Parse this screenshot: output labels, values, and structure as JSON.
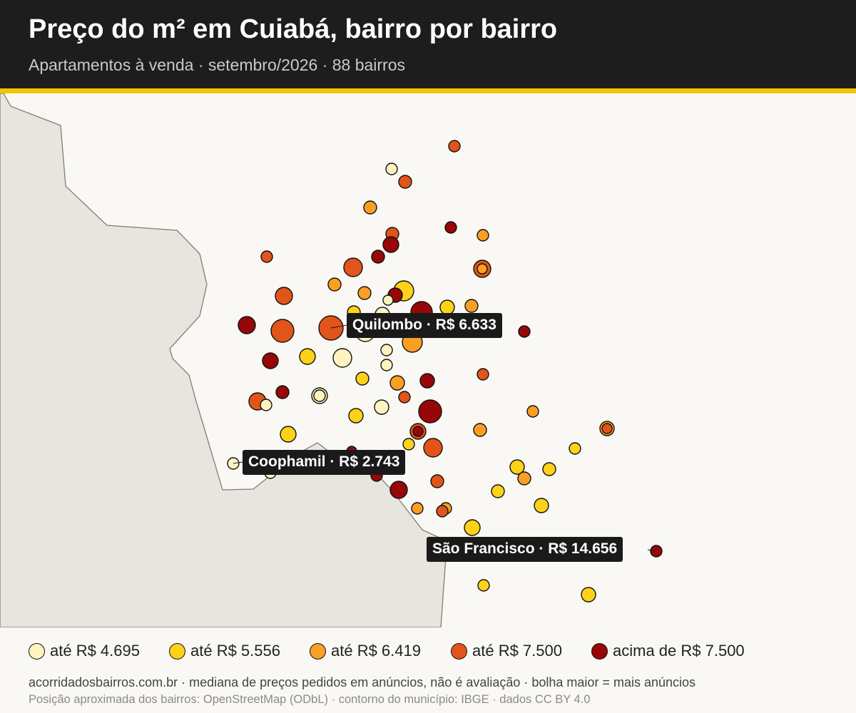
{
  "header": {
    "title": "Preço do m² em Cuiabá, bairro por bairro",
    "subtitle": "Apartamentos à venda · setembro/2026 · 88 bairros"
  },
  "colors": {
    "header_bg": "#1d1d1d",
    "accent": "#f5c400",
    "land_outside": "#e8e5df",
    "map_bg": "#faf8f4",
    "callout_bg": "#1a1a1a"
  },
  "legend": {
    "items": [
      {
        "label": "até R$ 4.695",
        "color": "#fff3c0",
        "tier": 1
      },
      {
        "label": "até R$ 5.556",
        "color": "#ffd21a",
        "tier": 2
      },
      {
        "label": "até R$ 6.419",
        "color": "#fb9f24",
        "tier": 3
      },
      {
        "label": "até R$ 7.500",
        "color": "#e2551a",
        "tier": 4
      },
      {
        "label": "acima de R$ 7.500",
        "color": "#980708",
        "tier": 5
      }
    ]
  },
  "callouts": [
    {
      "name": "Quilombo",
      "text": "Quilombo · R$ 6.633",
      "tier": 4
    },
    {
      "name": "Coophamil",
      "text": "Coophamil · R$ 2.743",
      "tier": 1
    },
    {
      "name": "São Francisco",
      "text": "São Francisco · R$ 14.656",
      "tier": 5
    }
  ],
  "footer": {
    "note": "acorridadosbairros.com.br · mediana de preços pedidos em anúncios, não é avaliação · bolha maior = mais anúncios",
    "source": "Posição aproximada dos bairros: OpenStreetMap (ODbL) · contorno do município: IBGE · dados CC BY 4.0"
  }
}
